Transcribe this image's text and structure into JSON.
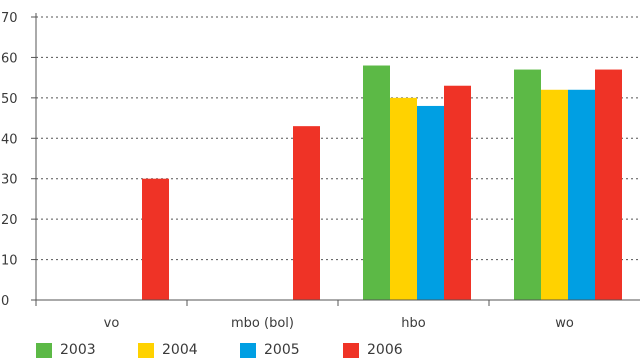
{
  "chart_data": {
    "type": "bar",
    "categories": [
      "vo",
      "mbo (bol)",
      "hbo",
      "wo"
    ],
    "series": [
      {
        "name": "2003",
        "color": "#5cb946",
        "values": [
          null,
          null,
          58,
          57
        ]
      },
      {
        "name": "2004",
        "color": "#ffd200",
        "values": [
          null,
          null,
          50,
          52
        ]
      },
      {
        "name": "2005",
        "color": "#009fe3",
        "values": [
          null,
          null,
          48,
          52
        ]
      },
      {
        "name": "2006",
        "color": "#ef3326",
        "values": [
          30,
          43,
          53,
          57
        ]
      }
    ],
    "yticks": [
      "0",
      "10",
      "20",
      "30",
      "40",
      "50",
      "60",
      "70"
    ],
    "ylim": [
      0,
      70
    ],
    "grid": true,
    "legend_position": "bottom-left"
  }
}
